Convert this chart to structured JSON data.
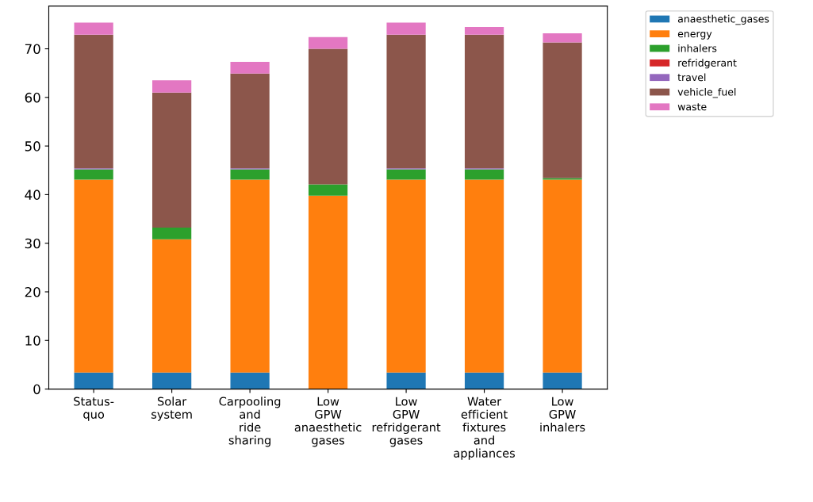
{
  "chart_data": {
    "type": "bar",
    "stacked": true,
    "categories": [
      "Status-\nquo",
      "Solar\nsystem",
      "Carpooling\nand\nride\nsharing",
      "Low\nGPW\nanaesthetic\ngases",
      "Low\nGPW\nrefridgerant\ngases",
      "Water\nefficient\nfixtures\nand\nappliances",
      "Low\nGPW\ninhalers"
    ],
    "series": [
      {
        "name": "anaesthetic_gases",
        "color": "#1f77b4",
        "values": [
          3.4,
          3.4,
          3.4,
          0,
          3.4,
          3.4,
          3.4
        ]
      },
      {
        "name": "energy",
        "color": "#ff7f0e",
        "values": [
          39.7,
          27.4,
          39.7,
          39.8,
          39.7,
          39.7,
          39.7
        ]
      },
      {
        "name": "inhalers",
        "color": "#2ca02c",
        "values": [
          2.1,
          2.4,
          2.1,
          2.3,
          2.1,
          2.1,
          0.3
        ]
      },
      {
        "name": "refridgerant",
        "color": "#d62728",
        "values": [
          0,
          0,
          0,
          0,
          0,
          0,
          0
        ]
      },
      {
        "name": "travel",
        "color": "#9467bd",
        "values": [
          0.2,
          0,
          0.2,
          0,
          0.2,
          0.2,
          0
        ]
      },
      {
        "name": "vehicle_fuel",
        "color": "#8c564b",
        "values": [
          27.5,
          27.8,
          19.5,
          27.9,
          27.5,
          27.5,
          27.9
        ]
      },
      {
        "name": "waste",
        "color": "#e377c2",
        "values": [
          2.5,
          2.5,
          2.4,
          2.4,
          2.5,
          1.6,
          1.9
        ]
      }
    ],
    "ylim": [
      0,
      78.8
    ],
    "yticks": [
      0,
      10,
      20,
      30,
      40,
      50,
      60,
      70
    ],
    "grid": false,
    "legend": "top right"
  }
}
